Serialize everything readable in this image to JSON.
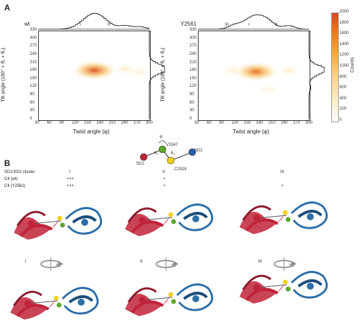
{
  "panel_a": {
    "letter": "A",
    "plots": [
      {
        "name": "wt",
        "marg_labels": [
          "I",
          "II"
        ]
      },
      {
        "name": "Y2561",
        "marg_labels": [
          "III",
          "I",
          "II"
        ]
      }
    ],
    "xlabel": "Twist angle (φ)",
    "ylabel": "Tilt angle (180° + θ₁ + θ₂)",
    "xticks": [
      "30",
      "60",
      "90",
      "120",
      "150",
      "180",
      "210",
      "240",
      "270",
      "300"
    ],
    "yticks": [
      "0",
      "30",
      "60",
      "90",
      "120",
      "150",
      "180",
      "210",
      "240",
      "270",
      "300",
      "330"
    ],
    "colorbar": {
      "label": "Counts",
      "ticks": [
        "0",
        "200",
        "400",
        "600",
        "800",
        "1000",
        "1200",
        "1400",
        "1600",
        "1800",
        "2000"
      ]
    },
    "schematic": {
      "labels": {
        "phi": "φ",
        "theta1": "θ₁",
        "theta2": "θ₂",
        "v": "V2547",
        "c": "C2528",
        "sd1": "SD1",
        "sd2": "SD2"
      },
      "colors": {
        "sd1": "#c0233a",
        "v": "#5ea82c",
        "c": "#f2d21b",
        "sd2": "#2c5da8"
      }
    }
  },
  "panel_b": {
    "letter": "B",
    "table": {
      "row_labels": [
        "SD1/SD2 cluster",
        "C4 (wt)",
        "C4 (Y2561)"
      ],
      "columns": [
        {
          "cluster": "I",
          "wt": "+++",
          "y": "+++"
        },
        {
          "cluster": "II",
          "wt": "+",
          "y": "+"
        },
        {
          "cluster": "III",
          "wt": "",
          "y": "+"
        }
      ]
    },
    "rotation_labels": [
      "I",
      "II",
      "III"
    ],
    "rotation_angle": "90°"
  },
  "chart_data": [
    {
      "type": "heatmap",
      "title": "wt",
      "xlabel": "Twist angle (φ)",
      "ylabel": "Tilt angle (180° + θ₁ + θ₂)",
      "xlim": [
        30,
        300
      ],
      "ylim": [
        0,
        330
      ],
      "marginal_peaks_x": [
        [
          "I",
          165
        ],
        [
          "II",
          250
        ]
      ],
      "hotspots": [
        {
          "x": 165,
          "y": 185,
          "intensity": 1900
        },
        {
          "x": 240,
          "y": 190,
          "intensity": 400
        },
        {
          "x": 275,
          "y": 180,
          "intensity": 300
        }
      ]
    },
    {
      "type": "heatmap",
      "title": "Y2561",
      "xlabel": "Twist angle (φ)",
      "ylabel": "Tilt angle (180° + θ₁ + θ₂)",
      "xlim": [
        30,
        300
      ],
      "ylim": [
        0,
        330
      ],
      "marginal_peaks_x": [
        [
          "III",
          120
        ],
        [
          "I",
          170
        ],
        [
          "II",
          250
        ]
      ],
      "hotspots": [
        {
          "x": 170,
          "y": 180,
          "intensity": 1700
        },
        {
          "x": 115,
          "y": 185,
          "intensity": 350
        },
        {
          "x": 250,
          "y": 185,
          "intensity": 400
        },
        {
          "x": 200,
          "y": 115,
          "intensity": 250
        }
      ]
    }
  ]
}
